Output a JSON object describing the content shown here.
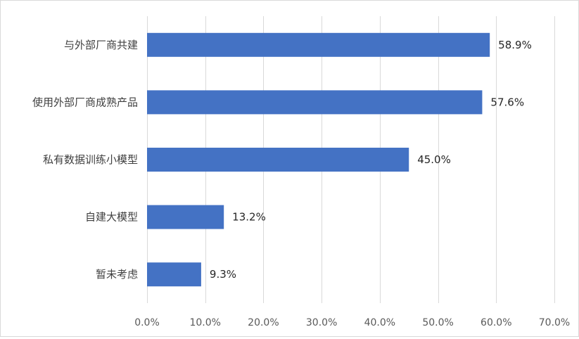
{
  "chart_data": {
    "type": "bar",
    "orientation": "horizontal",
    "title": "",
    "xlabel": "",
    "ylabel": "",
    "categories": [
      "与外部厂商共建",
      "使用外部厂商成熟产品",
      "私有数据训练小模型",
      "自建大模型",
      "暂未考虑"
    ],
    "values": [
      58.9,
      57.6,
      45.0,
      13.2,
      9.3
    ],
    "value_labels": [
      "58.9%",
      "57.6%",
      "45.0%",
      "13.2%",
      "9.3%"
    ],
    "xlim": [
      0,
      70
    ],
    "x_ticks": [
      0,
      10,
      20,
      30,
      40,
      50,
      60,
      70
    ],
    "x_tick_labels": [
      "0.0%",
      "10.0%",
      "20.0%",
      "30.0%",
      "40.0%",
      "50.0%",
      "60.0%",
      "70.0%"
    ],
    "grid": true,
    "legend": "none",
    "bar_color": "#4472c4",
    "grid_color": "#d9d9d9"
  }
}
